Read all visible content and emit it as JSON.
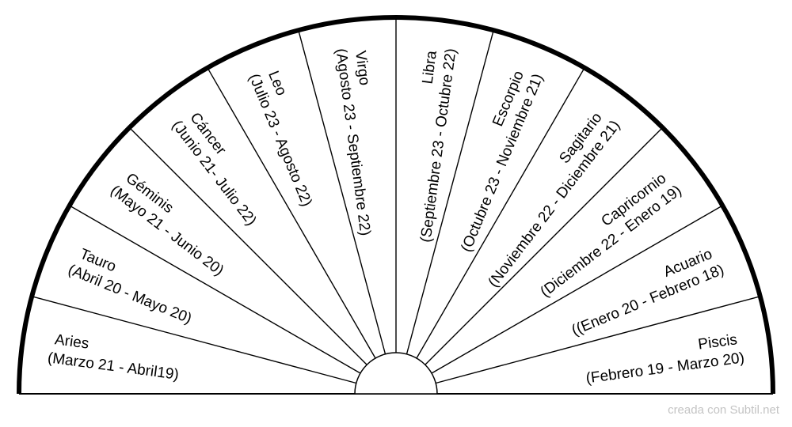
{
  "diagram": {
    "signs": [
      {
        "name": "Aries",
        "dates": "(Marzo 21 - Abril19)"
      },
      {
        "name": "Tauro",
        "dates": "(Abril 20 - Mayo 20)"
      },
      {
        "name": "Géminis",
        "dates": "(Mayo 21 - Junio 20)"
      },
      {
        "name": "Cáncer",
        "dates": "(Junio 21- Julio 22)"
      },
      {
        "name": "Leo",
        "dates": "(Julio 23 - Agosto 22)"
      },
      {
        "name": "Virgo",
        "dates": "(Agosto 23 - Septiembre 22)"
      },
      {
        "name": "Libra",
        "dates": "(Septiembre 23 - Octubre 22)"
      },
      {
        "name": "Escorpio",
        "dates": "(Octubre 23 - Noviembre 21)"
      },
      {
        "name": "Sagitario",
        "dates": "(Noviembre 22 - Diciembre 21)"
      },
      {
        "name": "Capricornio",
        "dates": "(Diciembre 22 - Enero 19)"
      },
      {
        "name": "Acuario",
        "dates": "((Enero 20 - Febrero 18)"
      },
      {
        "name": "Piscis",
        "dates": "(Febrero 19 - Marzo 20)"
      }
    ]
  },
  "footer": {
    "credit": "creada con Subtil.net"
  }
}
